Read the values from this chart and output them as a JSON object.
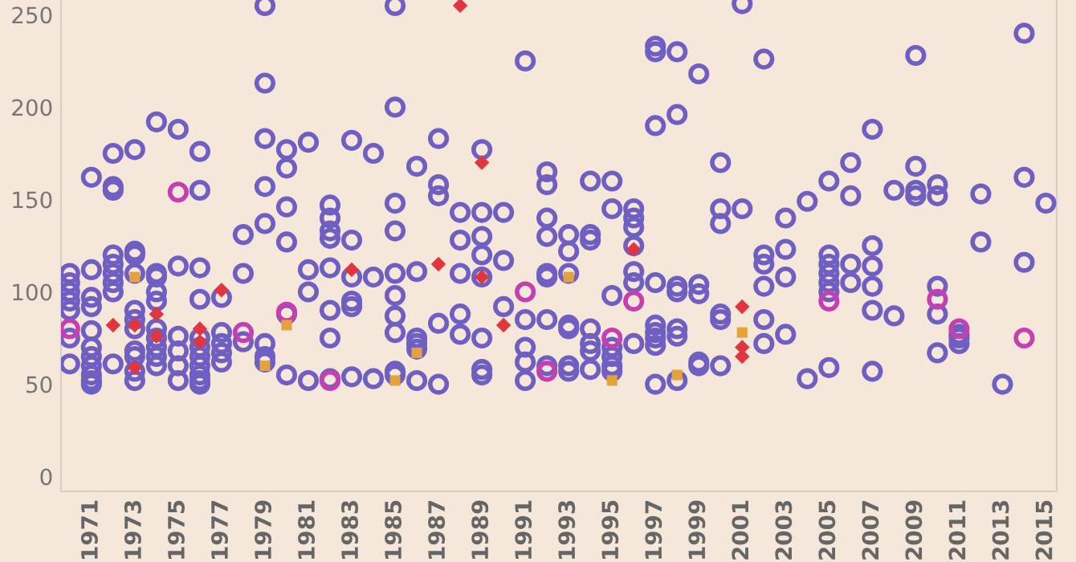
{
  "chart_data": {
    "type": "scatter",
    "xlim": [
      1969.6,
      2015.5
    ],
    "xticks": [
      1971,
      1973,
      1975,
      1977,
      1979,
      1981,
      1983,
      1985,
      1987,
      1989,
      1991,
      1993,
      1995,
      1997,
      1999,
      2001,
      2003,
      2005,
      2007,
      2009,
      2011,
      2013,
      2015
    ],
    "ylim": [
      -8,
      258
    ],
    "yticks": [
      0,
      50,
      100,
      150,
      200,
      250
    ],
    "grid": false,
    "legend": false,
    "series": [
      {
        "color": "#6f5fc2",
        "marker": "circle",
        "x": [
          1970,
          1970,
          1970,
          1970,
          1970,
          1970,
          1970,
          1971,
          1971,
          1971,
          1971,
          1971,
          1971,
          1971,
          1971,
          1971,
          1971,
          1971,
          1972,
          1972,
          1972,
          1972,
          1972,
          1972,
          1972,
          1972,
          1972,
          1973,
          1973,
          1973,
          1973,
          1973,
          1973,
          1973,
          1973,
          1973,
          1973,
          1973,
          1974,
          1974,
          1974,
          1974,
          1974,
          1974,
          1974,
          1974,
          1974,
          1974,
          1975,
          1975,
          1975,
          1975,
          1975,
          1975,
          1976,
          1976,
          1976,
          1976,
          1976,
          1976,
          1976,
          1976,
          1976,
          1976,
          1976,
          1977,
          1977,
          1977,
          1977,
          1977,
          1978,
          1978,
          1978,
          1979,
          1979,
          1979,
          1979,
          1979,
          1979,
          1979,
          1979,
          1980,
          1980,
          1980,
          1980,
          1980,
          1980,
          1981,
          1981,
          1981,
          1981,
          1982,
          1982,
          1982,
          1982,
          1982,
          1982,
          1982,
          1982,
          1983,
          1983,
          1983,
          1983,
          1983,
          1983,
          1984,
          1984,
          1984,
          1985,
          1985,
          1985,
          1985,
          1985,
          1985,
          1985,
          1985,
          1985,
          1985,
          1986,
          1986,
          1986,
          1986,
          1986,
          1986,
          1987,
          1987,
          1987,
          1987,
          1987,
          1988,
          1988,
          1988,
          1988,
          1988,
          1989,
          1989,
          1989,
          1989,
          1989,
          1989,
          1989,
          1989,
          1990,
          1990,
          1990,
          1991,
          1991,
          1991,
          1991,
          1991,
          1992,
          1992,
          1992,
          1992,
          1992,
          1992,
          1992,
          1992,
          1993,
          1993,
          1993,
          1993,
          1993,
          1993,
          1993,
          1994,
          1994,
          1994,
          1994,
          1994,
          1994,
          1994,
          1995,
          1995,
          1995,
          1995,
          1995,
          1995,
          1995,
          1996,
          1996,
          1996,
          1996,
          1996,
          1996,
          1996,
          1997,
          1997,
          1997,
          1997,
          1997,
          1997,
          1997,
          1997,
          1997,
          1998,
          1998,
          1998,
          1998,
          1998,
          1998,
          1998,
          1999,
          1999,
          1999,
          1999,
          1999,
          2000,
          2000,
          2000,
          2000,
          2000,
          2000,
          2001,
          2001,
          2002,
          2002,
          2002,
          2002,
          2002,
          2002,
          2003,
          2003,
          2003,
          2003,
          2004,
          2004,
          2005,
          2005,
          2005,
          2005,
          2005,
          2005,
          2005,
          2006,
          2006,
          2006,
          2006,
          2007,
          2007,
          2007,
          2007,
          2007,
          2007,
          2008,
          2008,
          2009,
          2009,
          2009,
          2009,
          2010,
          2010,
          2010,
          2010,
          2010,
          2011,
          2011,
          2011,
          2012,
          2012,
          2013,
          2014,
          2014,
          2014,
          2015
        ],
        "values": [
          110,
          105,
          100,
          95,
          90,
          75,
          61,
          162,
          112,
          97,
          92,
          79,
          70,
          65,
          60,
          55,
          52,
          50,
          175,
          157,
          155,
          120,
          115,
          110,
          105,
          100,
          61,
          177,
          122,
          120,
          110,
          90,
          85,
          80,
          68,
          65,
          57,
          52,
          192,
          110,
          108,
          100,
          95,
          80,
          75,
          70,
          65,
          60,
          188,
          114,
          76,
          68,
          60,
          52,
          176,
          155,
          113,
          96,
          75,
          70,
          65,
          60,
          55,
          52,
          50,
          97,
          78,
          72,
          67,
          62,
          131,
          110,
          73,
          255,
          213,
          183,
          157,
          137,
          72,
          65,
          62,
          177,
          167,
          146,
          127,
          88,
          55,
          181,
          112,
          100,
          52,
          147,
          140,
          133,
          129,
          113,
          90,
          75,
          53,
          182,
          128,
          108,
          95,
          92,
          54,
          175,
          108,
          53,
          255,
          200,
          148,
          133,
          110,
          98,
          87,
          78,
          57,
          55,
          168,
          111,
          75,
          72,
          69,
          52,
          183,
          158,
          152,
          83,
          50,
          143,
          128,
          110,
          88,
          77,
          177,
          143,
          130,
          120,
          108,
          75,
          58,
          55,
          143,
          117,
          92,
          225,
          85,
          70,
          62,
          52,
          165,
          158,
          140,
          130,
          110,
          108,
          85,
          60,
          131,
          122,
          110,
          82,
          80,
          60,
          57,
          160,
          131,
          128,
          80,
          72,
          68,
          58,
          160,
          145,
          98,
          70,
          65,
          60,
          57,
          145,
          140,
          135,
          125,
          111,
          105,
          72,
          233,
          230,
          190,
          105,
          82,
          78,
          75,
          71,
          50,
          230,
          196,
          103,
          100,
          80,
          76,
          52,
          218,
          104,
          99,
          62,
          60,
          170,
          145,
          137,
          88,
          85,
          60,
          256,
          145,
          226,
          120,
          115,
          103,
          85,
          72,
          140,
          123,
          108,
          77,
          149,
          53,
          160,
          120,
          115,
          110,
          105,
          100,
          59,
          170,
          152,
          115,
          105,
          188,
          125,
          114,
          103,
          90,
          57,
          155,
          87,
          228,
          168,
          155,
          152,
          158,
          152,
          103,
          88,
          67,
          77,
          75,
          72,
          153,
          127,
          50,
          240,
          162,
          116,
          148
        ]
      },
      {
        "color": "#c63fb0",
        "marker": "circle",
        "x": [
          1970,
          1975,
          1978,
          1980,
          1982,
          1991,
          1992,
          1995,
          1996,
          2005,
          2010,
          2011,
          2014
        ],
        "values": [
          80,
          154,
          78,
          89,
          52,
          100,
          57,
          75,
          95,
          95,
          96,
          80,
          75
        ]
      },
      {
        "color": "#e3a33a",
        "marker": "square",
        "x": [
          1973,
          1979,
          1980,
          1985,
          1986,
          1993,
          1995,
          1998,
          2001
        ],
        "values": [
          108,
          60,
          82,
          52,
          67,
          108,
          52,
          55,
          78
        ]
      },
      {
        "color": "#e0363f",
        "marker": "diamond",
        "x": [
          1972,
          1973,
          1973,
          1974,
          1974,
          1976,
          1976,
          1977,
          1983,
          1987,
          1988,
          1989,
          1989,
          1990,
          1996,
          2001,
          2001,
          2001
        ],
        "values": [
          82,
          82,
          59,
          88,
          76,
          80,
          73,
          101,
          112,
          115,
          255,
          170,
          108,
          82,
          123,
          92,
          70,
          65
        ]
      }
    ]
  }
}
